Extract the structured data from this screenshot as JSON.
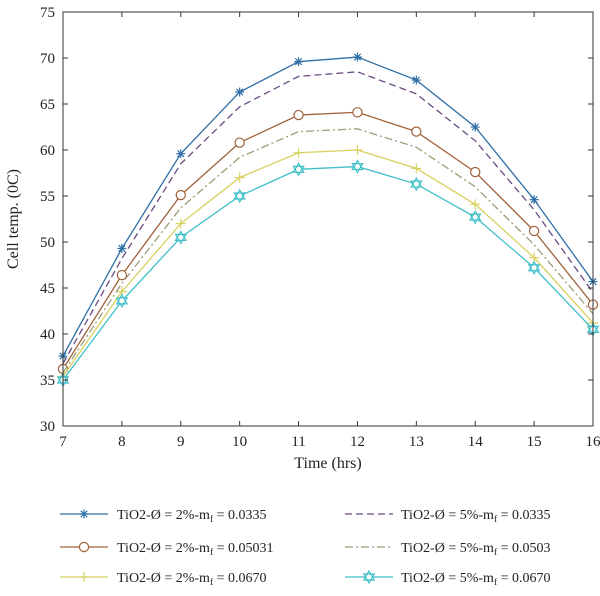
{
  "chart_data": {
    "type": "line",
    "title": "",
    "xlabel": "Time (hrs)",
    "ylabel": "Cell temp. (0C)",
    "xlim": [
      7,
      16
    ],
    "ylim": [
      30,
      75
    ],
    "x": [
      7,
      8,
      9,
      10,
      11,
      12,
      13,
      14,
      15,
      16
    ],
    "xticks": [
      "7",
      "8",
      "9",
      "10",
      "11",
      "12",
      "13",
      "14",
      "15",
      "16"
    ],
    "yticks": [
      "30",
      "35",
      "40",
      "45",
      "50",
      "55",
      "60",
      "65",
      "70",
      "75"
    ],
    "grid": false,
    "legend_position": "bottom",
    "series": [
      {
        "name_prefix": "TiO2-Ø = 2%-m",
        "name_sub": "f",
        "name_suffix": " = 0.0335",
        "color": "#2f6fa6",
        "dash": "solid",
        "marker": "asterisk",
        "values": [
          37.6,
          49.3,
          59.6,
          66.3,
          69.6,
          70.1,
          67.6,
          62.5,
          54.6,
          45.7
        ]
      },
      {
        "name_prefix": "TiO2-Ø = 5%-m",
        "name_sub": "f",
        "name_suffix": " = 0.0335",
        "color": "#6b4a80",
        "dash": "dashed",
        "marker": "none",
        "values": [
          36.8,
          48.2,
          58.5,
          64.7,
          68.0,
          68.5,
          66.1,
          61.0,
          53.5,
          44.5
        ]
      },
      {
        "name_prefix": "TiO2-Ø = 2%-m",
        "name_sub": "f",
        "name_suffix": " = 0.05031",
        "color": "#a0623a",
        "dash": "solid",
        "marker": "circle",
        "values": [
          36.2,
          46.4,
          55.1,
          60.8,
          63.8,
          64.1,
          62.0,
          57.6,
          51.2,
          43.2
        ]
      },
      {
        "name_prefix": "TiO2-Ø = 5%-m",
        "name_sub": "f",
        "name_suffix": " = 0.0503",
        "color": "#9c9c78",
        "dash": "dashdot",
        "marker": "none",
        "values": [
          35.8,
          45.5,
          53.7,
          59.2,
          62.0,
          62.3,
          60.3,
          56.0,
          49.7,
          42.2
        ]
      },
      {
        "name_prefix": "TiO2-Ø = 2%-m",
        "name_sub": "f",
        "name_suffix": " = 0.0670",
        "color": "#d8d060",
        "dash": "solid",
        "marker": "plus",
        "values": [
          35.4,
          44.6,
          52.0,
          57.0,
          59.7,
          60.0,
          58.0,
          54.1,
          48.3,
          41.2
        ]
      },
      {
        "name_prefix": "TiO2-Ø = 5%-m",
        "name_sub": "f",
        "name_suffix": " = 0.0670",
        "color": "#3fbfc8",
        "dash": "solid",
        "marker": "hexagram",
        "values": [
          35.0,
          43.6,
          50.5,
          55.0,
          57.9,
          58.2,
          56.3,
          52.7,
          47.2,
          40.5
        ]
      }
    ]
  }
}
